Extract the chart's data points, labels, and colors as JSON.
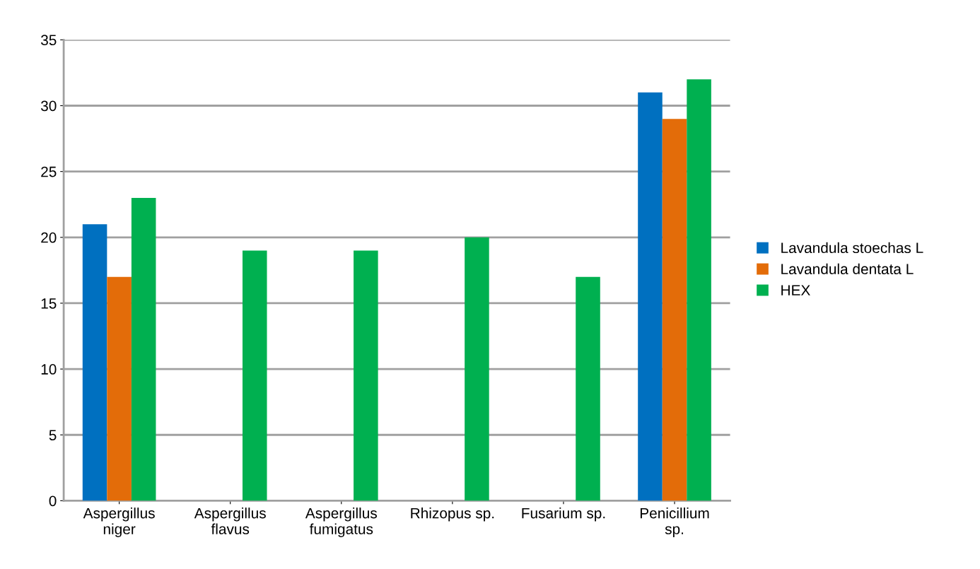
{
  "chart_data": {
    "type": "bar",
    "categories": [
      "Aspergillus\nniger",
      "Aspergillus\nflavus",
      "Aspergillus\nfumigatus",
      "Rhizopus sp.",
      "Fusarium sp.",
      "Penicillium\nsp."
    ],
    "series": [
      {
        "name": "Lavandula stoechas L",
        "color": "#0070c0",
        "values": [
          21,
          0,
          0,
          0,
          0,
          31
        ]
      },
      {
        "name": "Lavandula dentata L",
        "color": "#e36c09",
        "values": [
          17,
          0,
          0,
          0,
          0,
          29
        ]
      },
      {
        "name": "HEX",
        "color": "#00b050",
        "values": [
          23,
          19,
          19,
          20,
          17,
          32
        ]
      }
    ],
    "ylim": [
      0,
      35
    ],
    "yticks": [
      0,
      5,
      10,
      15,
      20,
      25,
      30,
      35
    ],
    "grid": "y",
    "legend": "right"
  }
}
